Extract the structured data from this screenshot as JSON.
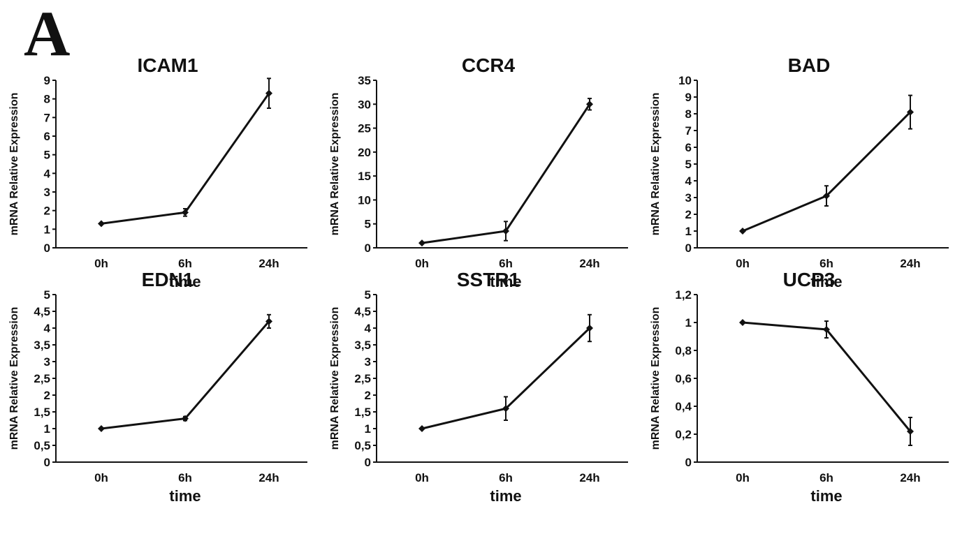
{
  "panel_letter": "A",
  "chart_data": [
    {
      "type": "line",
      "title": "ICAM1",
      "xlabel": "time",
      "ylabel": "mRNA Relative Expression",
      "categories": [
        "0h",
        "6h",
        "24h"
      ],
      "ylim": [
        0,
        9
      ],
      "yticks": [
        0,
        1,
        2,
        3,
        4,
        5,
        6,
        7,
        8,
        9
      ],
      "ytick_labels": [
        "0",
        "1",
        "2",
        "3",
        "4",
        "5",
        "6",
        "7",
        "8",
        "9"
      ],
      "series": [
        {
          "values": [
            1.3,
            1.9,
            8.3
          ],
          "errors": [
            0.0,
            0.2,
            0.8
          ]
        }
      ],
      "grid": false,
      "color": "#111111"
    },
    {
      "type": "line",
      "title": "CCR4",
      "xlabel": "time",
      "ylabel": "mRNA Relative Expression",
      "categories": [
        "0h",
        "6h",
        "24h"
      ],
      "ylim": [
        0,
        35
      ],
      "yticks": [
        0,
        5,
        10,
        15,
        20,
        25,
        30,
        35
      ],
      "ytick_labels": [
        "0",
        "5",
        "10",
        "15",
        "20",
        "25",
        "30",
        "35"
      ],
      "series": [
        {
          "values": [
            1.0,
            3.5,
            30.0
          ],
          "errors": [
            0.0,
            2.0,
            1.2
          ]
        }
      ],
      "grid": false,
      "color": "#111111"
    },
    {
      "type": "line",
      "title": "BAD",
      "xlabel": "time",
      "ylabel": "mRNA Relative Expression",
      "categories": [
        "0h",
        "6h",
        "24h"
      ],
      "ylim": [
        0,
        10
      ],
      "yticks": [
        0,
        1,
        2,
        3,
        4,
        5,
        6,
        7,
        8,
        9,
        10
      ],
      "ytick_labels": [
        "0",
        "1",
        "2",
        "3",
        "4",
        "5",
        "6",
        "7",
        "8",
        "9",
        "10"
      ],
      "series": [
        {
          "values": [
            1.0,
            3.1,
            8.1
          ],
          "errors": [
            0.0,
            0.6,
            1.0
          ]
        }
      ],
      "grid": false,
      "color": "#111111"
    },
    {
      "type": "line",
      "title": "EDN1",
      "xlabel": "time",
      "ylabel": "mRNA Relative Expression",
      "categories": [
        "0h",
        "6h",
        "24h"
      ],
      "ylim": [
        0,
        5
      ],
      "yticks": [
        0,
        0.5,
        1,
        1.5,
        2,
        2.5,
        3,
        3.5,
        4,
        4.5,
        5
      ],
      "ytick_labels": [
        "0",
        "0,5",
        "1",
        "1,5",
        "2",
        "2,5",
        "3",
        "3,5",
        "4",
        "4,5",
        "5"
      ],
      "series": [
        {
          "values": [
            1.0,
            1.3,
            4.2
          ],
          "errors": [
            0.0,
            0.06,
            0.2
          ]
        }
      ],
      "grid": false,
      "color": "#111111"
    },
    {
      "type": "line",
      "title": "SSTR1",
      "xlabel": "time",
      "ylabel": "mRNA Relative Expression",
      "categories": [
        "0h",
        "6h",
        "24h"
      ],
      "ylim": [
        0,
        5
      ],
      "yticks": [
        0,
        0.5,
        1,
        1.5,
        2,
        2.5,
        3,
        3.5,
        4,
        4.5,
        5
      ],
      "ytick_labels": [
        "0",
        "0,5",
        "1",
        "1,5",
        "2",
        "2,5",
        "3",
        "3,5",
        "4",
        "4,5",
        "5"
      ],
      "series": [
        {
          "values": [
            1.0,
            1.6,
            4.0
          ],
          "errors": [
            0.0,
            0.35,
            0.4
          ]
        }
      ],
      "grid": false,
      "color": "#111111"
    },
    {
      "type": "line",
      "title": "UCP3",
      "xlabel": "time",
      "ylabel": "mRNA Relative Expression",
      "categories": [
        "0h",
        "6h",
        "24h"
      ],
      "ylim": [
        0,
        1.2
      ],
      "yticks": [
        0,
        0.2,
        0.4,
        0.6,
        0.8,
        1,
        1.2
      ],
      "ytick_labels": [
        "0",
        "0,2",
        "0,4",
        "0,6",
        "0,8",
        "1",
        "1,2"
      ],
      "series": [
        {
          "values": [
            1.0,
            0.95,
            0.22
          ],
          "errors": [
            0.0,
            0.06,
            0.1
          ]
        }
      ],
      "grid": false,
      "color": "#111111"
    }
  ]
}
